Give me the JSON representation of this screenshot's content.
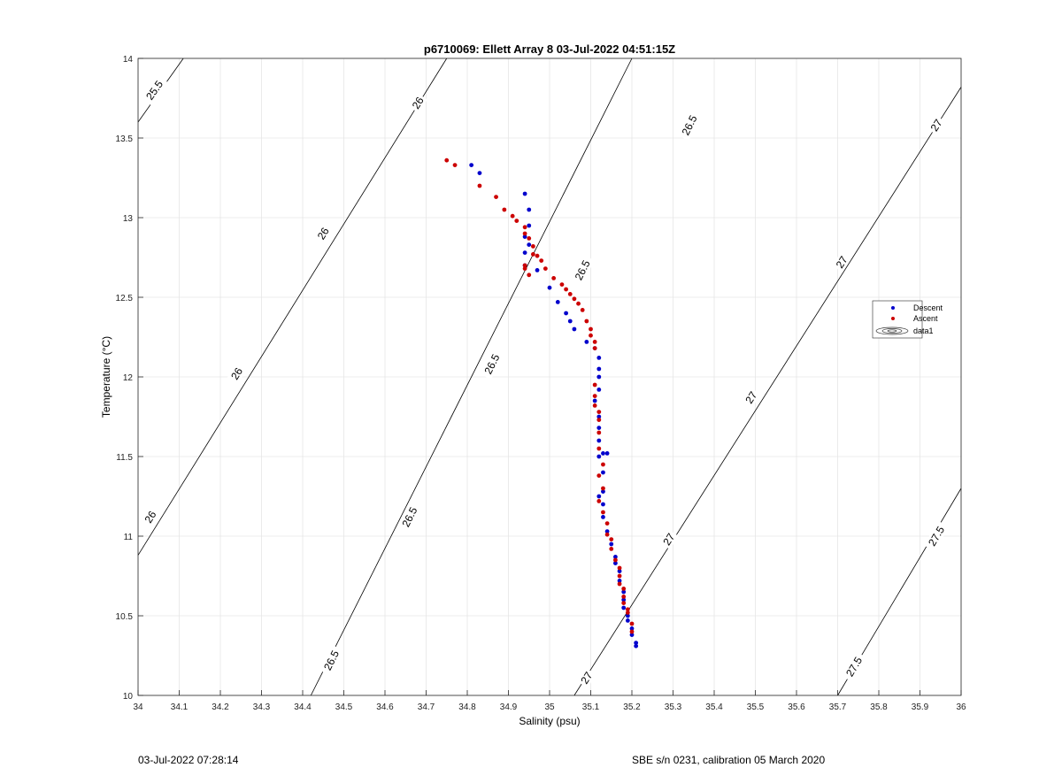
{
  "chart_data": {
    "type": "scatter",
    "title": "p6710069: Ellett Array 8 03-Jul-2022 04:51:15Z",
    "xlabel": "Salinity (psu)",
    "ylabel": "Temperature (°C)",
    "xlim": [
      34,
      36
    ],
    "ylim": [
      10,
      14
    ],
    "xticks": [
      "34",
      "34.1",
      "34.2",
      "34.3",
      "34.4",
      "34.5",
      "34.6",
      "34.7",
      "34.8",
      "34.9",
      "35",
      "35.1",
      "35.2",
      "35.3",
      "35.4",
      "35.5",
      "35.6",
      "35.7",
      "35.8",
      "35.9",
      "36"
    ],
    "yticks": [
      "10",
      "10.5",
      "11",
      "11.5",
      "12",
      "12.5",
      "13",
      "13.5",
      "14"
    ],
    "grid": true,
    "legend_position": "right",
    "legend": [
      "Descent",
      "Ascent",
      "data1"
    ],
    "series": [
      {
        "name": "Descent",
        "color": "#0000cc",
        "points": [
          [
            34.81,
            13.33
          ],
          [
            34.83,
            13.28
          ],
          [
            34.94,
            13.15
          ],
          [
            34.95,
            13.05
          ],
          [
            34.95,
            12.95
          ],
          [
            34.94,
            12.88
          ],
          [
            34.95,
            12.83
          ],
          [
            34.94,
            12.78
          ],
          [
            34.97,
            12.67
          ],
          [
            34.94,
            12.7
          ],
          [
            35.0,
            12.56
          ],
          [
            35.02,
            12.47
          ],
          [
            35.04,
            12.4
          ],
          [
            35.05,
            12.35
          ],
          [
            35.06,
            12.3
          ],
          [
            35.09,
            12.22
          ],
          [
            35.11,
            12.18
          ],
          [
            35.12,
            12.12
          ],
          [
            35.12,
            12.05
          ],
          [
            35.12,
            12.0
          ],
          [
            35.12,
            11.92
          ],
          [
            35.11,
            11.85
          ],
          [
            35.12,
            11.75
          ],
          [
            35.12,
            11.68
          ],
          [
            35.12,
            11.6
          ],
          [
            35.12,
            11.5
          ],
          [
            35.13,
            11.52
          ],
          [
            35.14,
            11.52
          ],
          [
            35.13,
            11.4
          ],
          [
            35.13,
            11.28
          ],
          [
            35.12,
            11.25
          ],
          [
            35.13,
            11.2
          ],
          [
            35.13,
            11.12
          ],
          [
            35.14,
            11.03
          ],
          [
            35.15,
            10.95
          ],
          [
            35.16,
            10.87
          ],
          [
            35.16,
            10.83
          ],
          [
            35.17,
            10.78
          ],
          [
            35.17,
            10.72
          ],
          [
            35.18,
            10.65
          ],
          [
            35.18,
            10.6
          ],
          [
            35.18,
            10.55
          ],
          [
            35.19,
            10.5
          ],
          [
            35.19,
            10.47
          ],
          [
            35.2,
            10.42
          ],
          [
            35.2,
            10.38
          ],
          [
            35.21,
            10.33
          ],
          [
            35.21,
            10.31
          ]
        ]
      },
      {
        "name": "Ascent",
        "color": "#cc0000",
        "points": [
          [
            34.75,
            13.36
          ],
          [
            34.77,
            13.33
          ],
          [
            34.83,
            13.2
          ],
          [
            34.87,
            13.13
          ],
          [
            34.89,
            13.05
          ],
          [
            34.91,
            13.01
          ],
          [
            34.92,
            12.98
          ],
          [
            34.94,
            12.94
          ],
          [
            34.94,
            12.9
          ],
          [
            34.95,
            12.87
          ],
          [
            34.96,
            12.82
          ],
          [
            34.96,
            12.77
          ],
          [
            34.97,
            12.76
          ],
          [
            34.98,
            12.73
          ],
          [
            34.94,
            12.7
          ],
          [
            34.94,
            12.68
          ],
          [
            34.95,
            12.64
          ],
          [
            34.99,
            12.68
          ],
          [
            35.01,
            12.62
          ],
          [
            35.03,
            12.58
          ],
          [
            35.04,
            12.55
          ],
          [
            35.05,
            12.52
          ],
          [
            35.06,
            12.49
          ],
          [
            35.07,
            12.46
          ],
          [
            35.08,
            12.42
          ],
          [
            35.09,
            12.35
          ],
          [
            35.1,
            12.3
          ],
          [
            35.1,
            12.26
          ],
          [
            35.11,
            12.22
          ],
          [
            35.11,
            12.18
          ],
          [
            35.11,
            11.95
          ],
          [
            35.11,
            11.88
          ],
          [
            35.11,
            11.82
          ],
          [
            35.12,
            11.78
          ],
          [
            35.12,
            11.73
          ],
          [
            35.12,
            11.65
          ],
          [
            35.12,
            11.55
          ],
          [
            35.13,
            11.45
          ],
          [
            35.12,
            11.38
          ],
          [
            35.13,
            11.3
          ],
          [
            35.12,
            11.22
          ],
          [
            35.13,
            11.15
          ],
          [
            35.14,
            11.08
          ],
          [
            35.14,
            11.01
          ],
          [
            35.15,
            10.98
          ],
          [
            35.15,
            10.92
          ],
          [
            35.16,
            10.85
          ],
          [
            35.17,
            10.8
          ],
          [
            35.17,
            10.75
          ],
          [
            35.17,
            10.7
          ],
          [
            35.18,
            10.67
          ],
          [
            35.18,
            10.62
          ],
          [
            35.18,
            10.58
          ],
          [
            35.19,
            10.54
          ],
          [
            35.19,
            10.52
          ],
          [
            35.2,
            10.45
          ],
          [
            35.2,
            10.4
          ]
        ]
      }
    ],
    "density_contours": [
      {
        "label": "25.5",
        "from": [
          34.0,
          13.6
        ],
        "to": [
          34.11,
          14.0
        ],
        "labels_at": [
          [
            34.04,
            13.8
          ]
        ]
      },
      {
        "label": "26",
        "from": [
          34.0,
          10.88
        ],
        "to": [
          34.75,
          14.0
        ],
        "labels_at": [
          [
            34.03,
            11.12
          ],
          [
            34.24,
            12.02
          ],
          [
            34.45,
            12.9
          ],
          [
            34.68,
            13.72
          ]
        ]
      },
      {
        "label": "26.5",
        "from": [
          34.42,
          10.0
        ],
        "to": [
          35.2,
          14.0
        ],
        "labels_at": [
          [
            34.47,
            10.22
          ],
          [
            34.66,
            11.12
          ],
          [
            34.86,
            12.08
          ],
          [
            35.08,
            12.67
          ],
          [
            35.34,
            13.58
          ]
        ]
      },
      {
        "label": "27",
        "from": [
          35.06,
          10.0
        ],
        "to": [
          36.0,
          13.82
        ],
        "labels_at": [
          [
            35.09,
            10.11
          ],
          [
            35.29,
            10.98
          ],
          [
            35.49,
            11.87
          ],
          [
            35.71,
            12.72
          ],
          [
            35.94,
            13.58
          ]
        ]
      },
      {
        "label": "27.5",
        "from": [
          35.7,
          10.0
        ],
        "to": [
          36.0,
          11.3
        ],
        "labels_at": [
          [
            35.74,
            10.18
          ],
          [
            35.94,
            11.0
          ]
        ]
      }
    ]
  },
  "footer": {
    "timestamp": "03-Jul-2022 07:28:14",
    "calibration": "SBE s/n 0231, calibration 05 March 2020"
  }
}
